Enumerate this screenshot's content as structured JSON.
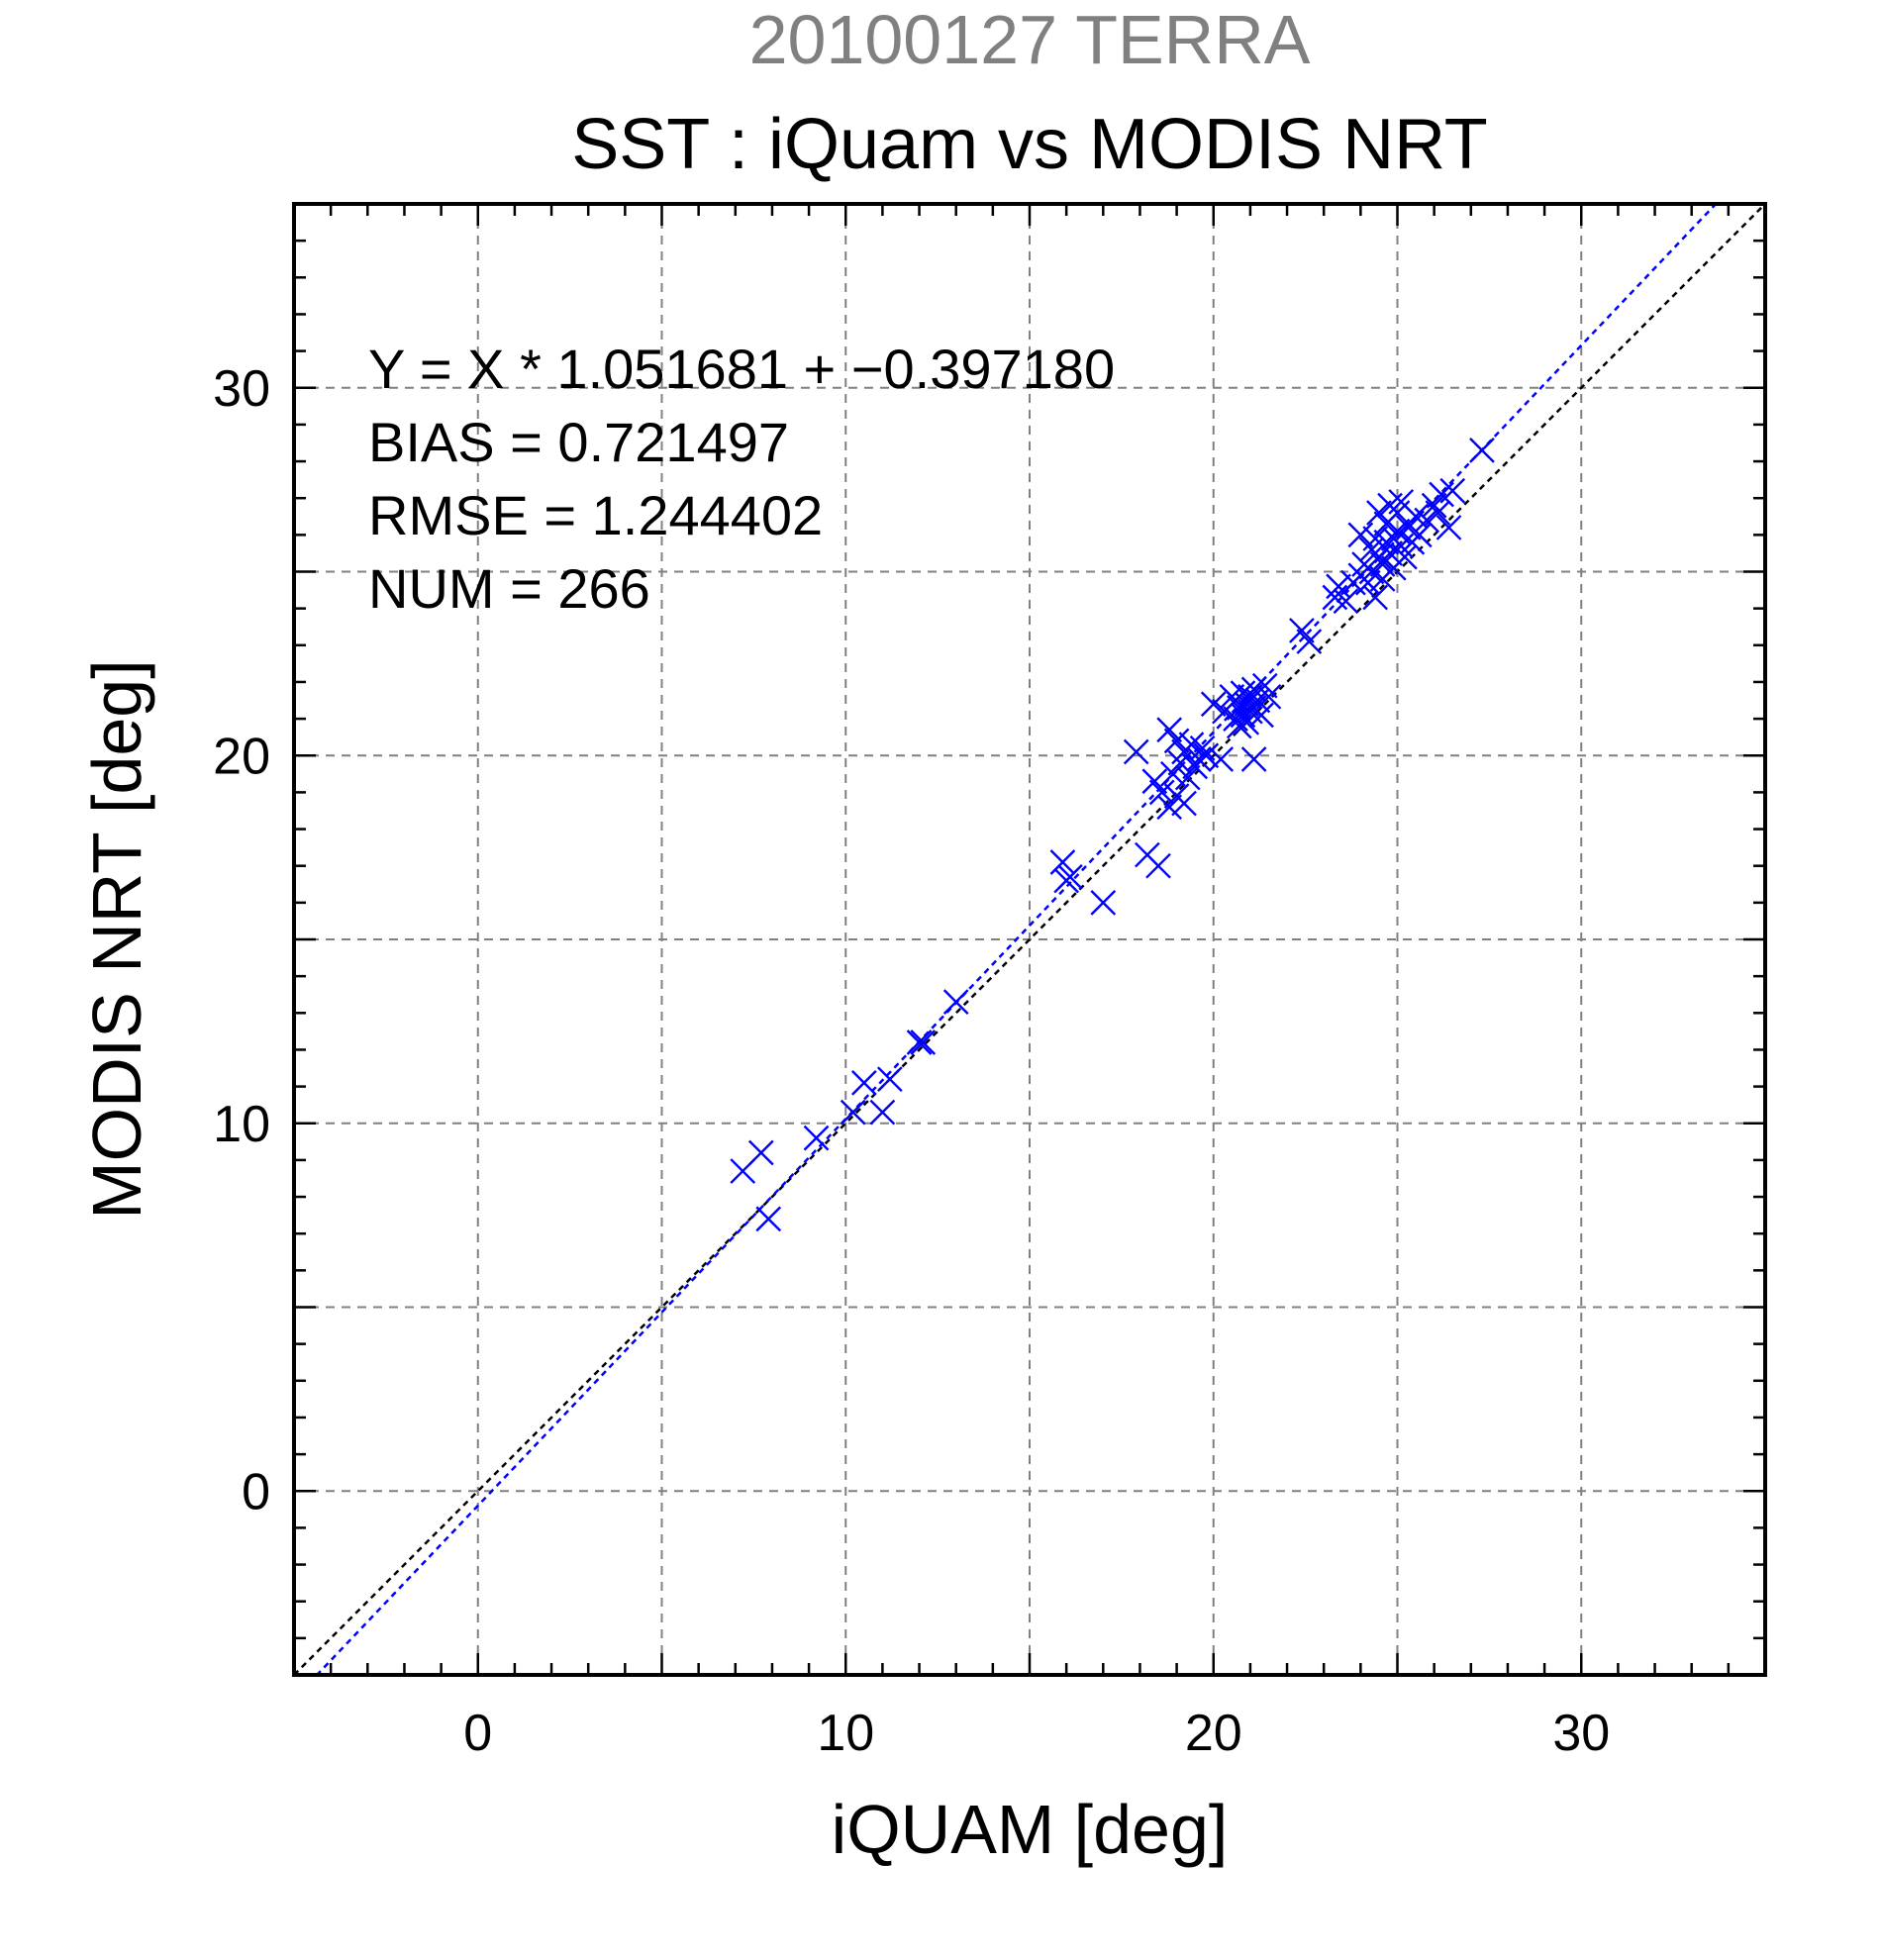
{
  "supertitle": "20100127 TERRA",
  "chart_data": {
    "type": "scatter",
    "title": "SST : iQuam vs MODIS NRT",
    "xlabel": "iQUAM [deg]",
    "ylabel": "MODIS NRT [deg]",
    "xlim": [
      -5,
      35
    ],
    "ylim": [
      -5,
      35
    ],
    "major_ticks": [
      0,
      10,
      20,
      30
    ],
    "minor_tick_step": 1,
    "grid": true,
    "grid_step": 5,
    "marker": "x",
    "colors": {
      "points": "#0000ff",
      "fit_line": "#0000ff",
      "identity_line": "#000000",
      "supertitle": "#808080"
    },
    "stats": {
      "equation": "Y = X * 1.051681 + −0.397180",
      "bias": "BIAS = 0.721497",
      "rmse": "RMSE = 1.244402",
      "num": "NUM = 266"
    },
    "fit": {
      "slope": 1.051681,
      "intercept": -0.39718
    },
    "identity": {
      "slope": 1,
      "intercept": 0
    },
    "points": [
      [
        7.2,
        8.7
      ],
      [
        7.7,
        9.2
      ],
      [
        7.9,
        7.4
      ],
      [
        9.2,
        9.6
      ],
      [
        10.2,
        10.3
      ],
      [
        10.5,
        11.1
      ],
      [
        11.0,
        10.3
      ],
      [
        11.2,
        11.2
      ],
      [
        12.0,
        12.2
      ],
      [
        12.1,
        12.2
      ],
      [
        13.0,
        13.3
      ],
      [
        15.9,
        17.1
      ],
      [
        16.0,
        16.6
      ],
      [
        16.1,
        16.7
      ],
      [
        17.0,
        16.0
      ],
      [
        17.9,
        20.1
      ],
      [
        18.2,
        17.3
      ],
      [
        18.5,
        17.0
      ],
      [
        18.4,
        19.3
      ],
      [
        18.6,
        19.0
      ],
      [
        18.8,
        20.7
      ],
      [
        18.8,
        18.6
      ],
      [
        18.9,
        19.5
      ],
      [
        19.0,
        18.9
      ],
      [
        19.0,
        20.4
      ],
      [
        19.1,
        19.8
      ],
      [
        19.2,
        18.7
      ],
      [
        19.2,
        20.1
      ],
      [
        19.3,
        19.4
      ],
      [
        19.4,
        20.3
      ],
      [
        19.5,
        19.7
      ],
      [
        19.6,
        19.9
      ],
      [
        19.7,
        20.2
      ],
      [
        19.8,
        20.0
      ],
      [
        20.2,
        19.9
      ],
      [
        20.0,
        21.4
      ],
      [
        20.3,
        21.2
      ],
      [
        20.5,
        21.6
      ],
      [
        20.6,
        21.0
      ],
      [
        20.6,
        21.5
      ],
      [
        20.7,
        20.8
      ],
      [
        20.7,
        21.3
      ],
      [
        20.8,
        21.7
      ],
      [
        20.8,
        21.1
      ],
      [
        20.9,
        21.4
      ],
      [
        20.9,
        20.9
      ],
      [
        21.0,
        21.6
      ],
      [
        21.0,
        21.2
      ],
      [
        21.1,
        21.8
      ],
      [
        21.1,
        21.3
      ],
      [
        21.2,
        21.5
      ],
      [
        21.3,
        21.1
      ],
      [
        21.4,
        21.9
      ],
      [
        21.5,
        21.6
      ],
      [
        21.1,
        19.9
      ],
      [
        22.4,
        23.4
      ],
      [
        22.6,
        23.1
      ],
      [
        23.3,
        24.3
      ],
      [
        23.4,
        24.6
      ],
      [
        23.6,
        24.2
      ],
      [
        23.8,
        24.7
      ],
      [
        24.0,
        24.9
      ],
      [
        24.0,
        26.0
      ],
      [
        24.1,
        25.2
      ],
      [
        24.2,
        24.7
      ],
      [
        24.3,
        25.6
      ],
      [
        24.3,
        25.0
      ],
      [
        24.4,
        24.3
      ],
      [
        24.4,
        25.9
      ],
      [
        24.5,
        25.4
      ],
      [
        24.5,
        26.6
      ],
      [
        24.6,
        24.8
      ],
      [
        24.6,
        25.2
      ],
      [
        24.7,
        25.8
      ],
      [
        24.7,
        26.3
      ],
      [
        24.8,
        25.5
      ],
      [
        24.8,
        26.8
      ],
      [
        24.9,
        25.9
      ],
      [
        24.9,
        25.1
      ],
      [
        25.0,
        26.1
      ],
      [
        25.0,
        26.6
      ],
      [
        25.1,
        25.7
      ],
      [
        25.1,
        26.9
      ],
      [
        25.2,
        25.4
      ],
      [
        25.3,
        26.2
      ],
      [
        25.4,
        25.8
      ],
      [
        25.5,
        26.5
      ],
      [
        25.6,
        26.0
      ],
      [
        25.8,
        26.4
      ],
      [
        26.0,
        26.8
      ],
      [
        26.1,
        26.6
      ],
      [
        26.2,
        27.1
      ],
      [
        26.4,
        26.2
      ],
      [
        26.5,
        27.2
      ],
      [
        27.3,
        28.3
      ]
    ]
  }
}
